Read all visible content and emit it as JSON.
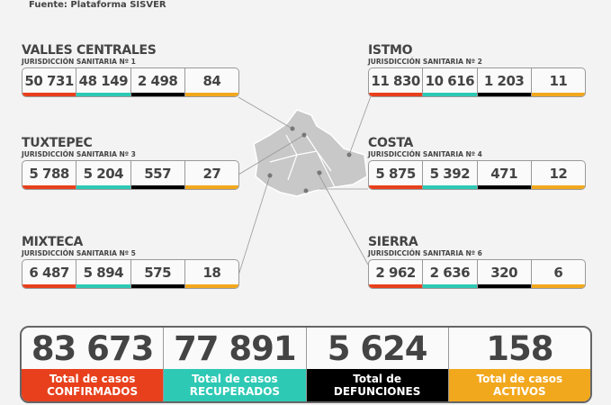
{
  "source": "Fuente: Plataforma SISVER",
  "colors": {
    "confirmados": "#e8401c",
    "recuperados": "#2ec9b5",
    "defunciones": "#000000",
    "activos": "#f2a81d"
  },
  "regions": [
    {
      "name": "VALLES CENTRALES",
      "sub": "JURISDICCIÓN SANITARIA Nº 1",
      "values": [
        "50 731",
        "48 149",
        "2 498",
        "84"
      ]
    },
    {
      "name": "ISTMO",
      "sub": "JURISDICCIÓN SANITARIA Nº 2",
      "values": [
        "11 830",
        "10 616",
        "1 203",
        "11"
      ]
    },
    {
      "name": "TUXTEPEC",
      "sub": "JURISDICCIÓN SANITARIA Nº 3",
      "values": [
        "5 788",
        "5 204",
        "557",
        "27"
      ]
    },
    {
      "name": "COSTA",
      "sub": "JURISDICCIÓN SANITARIA Nº 4",
      "values": [
        "5 875",
        "5 392",
        "471",
        "12"
      ]
    },
    {
      "name": "MIXTECA",
      "sub": "JURISDICCIÓN SANITARIA Nº 5",
      "values": [
        "6 487",
        "5 894",
        "575",
        "18"
      ]
    },
    {
      "name": "SIERRA",
      "sub": "JURISDICCIÓN SANITARIA Nº 6",
      "values": [
        "2 962",
        "2 636",
        "320",
        "6"
      ]
    }
  ],
  "totals": [
    {
      "value": "83 673",
      "line1": "Total de casos",
      "line2": "CONFIRMADOS"
    },
    {
      "value": "77 891",
      "line1": "Total de casos",
      "line2": "RECUPERADOS"
    },
    {
      "value": "5 624",
      "line1": "Total de",
      "line2": "DEFUNCIONES"
    },
    {
      "value": "158",
      "line1": "Total de casos",
      "line2": "ACTIVOS"
    }
  ]
}
